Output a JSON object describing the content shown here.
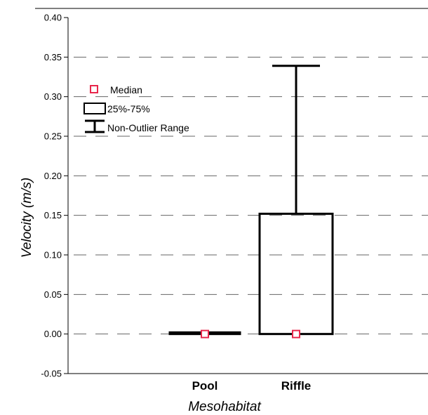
{
  "chart_data": {
    "type": "box",
    "title": "",
    "xlabel": "Mesohabitat",
    "ylabel": "Velocity (m/s)",
    "ylim": [
      -0.05,
      0.4
    ],
    "yticks": [
      "0.40",
      "0.35",
      "0.30",
      "0.25",
      "0.20",
      "0.15",
      "0.10",
      "0.05",
      "0.00",
      "-0.05"
    ],
    "ytick_values": [
      0.4,
      0.35,
      0.3,
      0.25,
      0.2,
      0.15,
      0.1,
      0.05,
      0.0,
      -0.05
    ],
    "grid": "dashed horizontal",
    "legend_placement": "top-left",
    "categories": [
      "Pool",
      "Riffle"
    ],
    "boxes": [
      {
        "category": "Pool",
        "median": 0.0,
        "q1": 0.0,
        "q3": 0.002,
        "whisker_low": 0.0,
        "whisker_high": 0.002
      },
      {
        "category": "Riffle",
        "median": 0.0,
        "q1": 0.0,
        "q3": 0.152,
        "whisker_low": 0.0,
        "whisker_high": 0.339
      }
    ],
    "legend": {
      "median": "Median",
      "box": "25%-75%",
      "whisker": "Non-Outlier Range"
    },
    "colors": {
      "median_marker": "#e8274b",
      "box": "#000000",
      "grid": "#666666"
    }
  }
}
